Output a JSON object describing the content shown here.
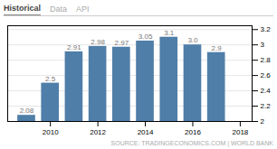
{
  "chart_data": {
    "type": "bar",
    "annotations": [
      "Historical",
      "Data",
      "API",
      "SOURCE: TRADINGECONOMICS.COM  |  WORLD BANK"
    ],
    "x": [
      2009,
      2010,
      2011,
      2012,
      2013,
      2014,
      2015,
      2016,
      2017
    ],
    "values": [
      2.08,
      2.5,
      2.91,
      2.98,
      2.97,
      3.05,
      3.1,
      3.0,
      2.9
    ],
    "value_labels": [
      "2.08",
      "2.5",
      "2.91",
      "2.98",
      "2.97",
      "3.05",
      "3.1",
      "3.0",
      "2.9"
    ],
    "data_labels": true,
    "color": "#4f7ea8",
    "xlim": [
      2008.2,
      2018.5
    ],
    "xticks": [
      2010,
      2012,
      2014,
      2016,
      2018
    ],
    "ylim": [
      2.0,
      3.25
    ],
    "yticks": [
      2.0,
      2.2,
      2.4,
      2.6,
      2.8,
      3.0,
      3.2
    ],
    "grid": true
  }
}
